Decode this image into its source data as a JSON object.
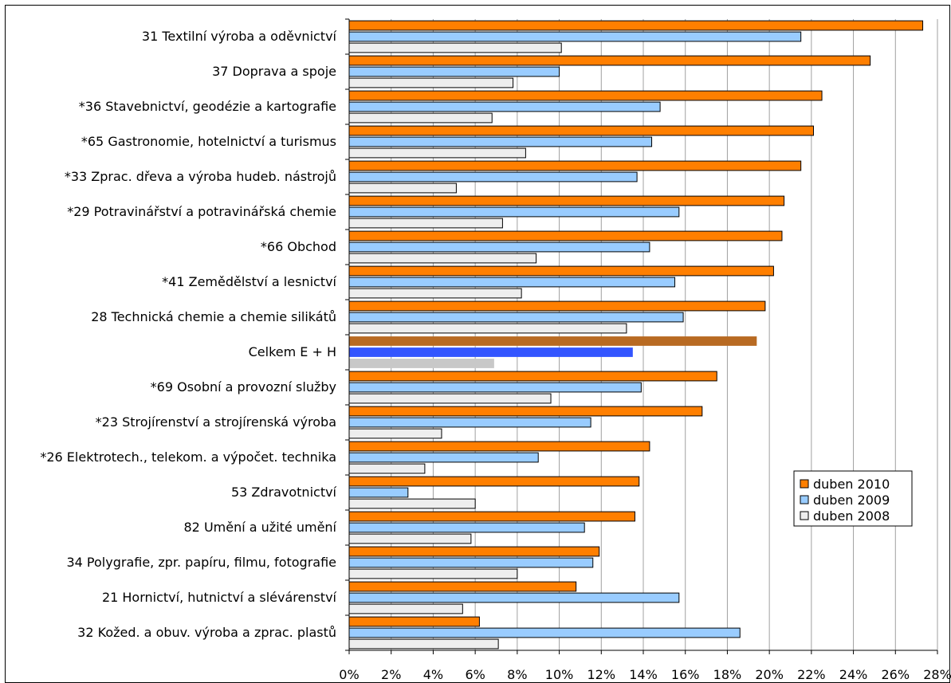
{
  "chart_data": {
    "type": "bar",
    "orientation": "horizontal",
    "categories": [
      "31 Textilní výroba a oděvnictví",
      "37 Doprava a spoje",
      "*36 Stavebnictví, geodézie a kartografie",
      "*65 Gastronomie, hotelnictví a turismus",
      "*33 Zprac. dřeva a výroba hudeb. nástrojů",
      "*29 Potravinářství a potravinářská chemie",
      "*66 Obchod",
      "*41 Zemědělství a lesnictví",
      "28 Technická chemie a chemie silikátů",
      "Celkem E + H",
      "*69 Osobní a provozní služby",
      "*23 Strojírenství a strojírenská výroba",
      "*26 Elektrotech., telekom. a výpočet. technika",
      "53 Zdravotnictví",
      "82 Umění a užité umění",
      "34 Polygrafie, zpr. papíru, filmu, fotografie",
      "21 Hornictví, hutnictví a slévárenství",
      "32 Kožed. a obuv. výroba a zprac. plastů"
    ],
    "series": [
      {
        "name": "duben 2010",
        "color": "#ff7f00",
        "highlight_color": "#b86a22",
        "border": "#000000",
        "values": [
          27.3,
          24.8,
          22.5,
          22.1,
          21.5,
          20.7,
          20.6,
          20.2,
          19.8,
          19.4,
          17.5,
          16.8,
          14.3,
          13.8,
          13.6,
          11.9,
          10.8,
          6.2
        ]
      },
      {
        "name": "duben 2009",
        "color": "#99ccff",
        "highlight_color": "#3355ff",
        "border": "#000000",
        "values": [
          21.5,
          10.0,
          14.8,
          14.4,
          13.7,
          15.7,
          14.3,
          15.5,
          15.9,
          13.5,
          13.9,
          11.5,
          9.0,
          2.8,
          11.2,
          11.6,
          15.7,
          18.6
        ]
      },
      {
        "name": "duben 2008",
        "color": "#eeeeee",
        "highlight_color": "#c8c8c8",
        "border": "#000000",
        "values": [
          10.1,
          7.8,
          6.8,
          8.4,
          5.1,
          7.3,
          8.9,
          8.2,
          13.2,
          6.9,
          9.6,
          4.4,
          3.6,
          6.0,
          5.8,
          8.0,
          5.4,
          7.1
        ]
      }
    ],
    "highlight_category": "Celkem E + H",
    "xlim": [
      0,
      28
    ],
    "xticks": [
      "0%",
      "2%",
      "4%",
      "6%",
      "8%",
      "10%",
      "12%",
      "14%",
      "16%",
      "18%",
      "20%",
      "22%",
      "24%",
      "26%",
      "28%"
    ],
    "grid": "vertical",
    "legend_placement": "right",
    "xlabel": "",
    "ylabel": "",
    "title": ""
  }
}
